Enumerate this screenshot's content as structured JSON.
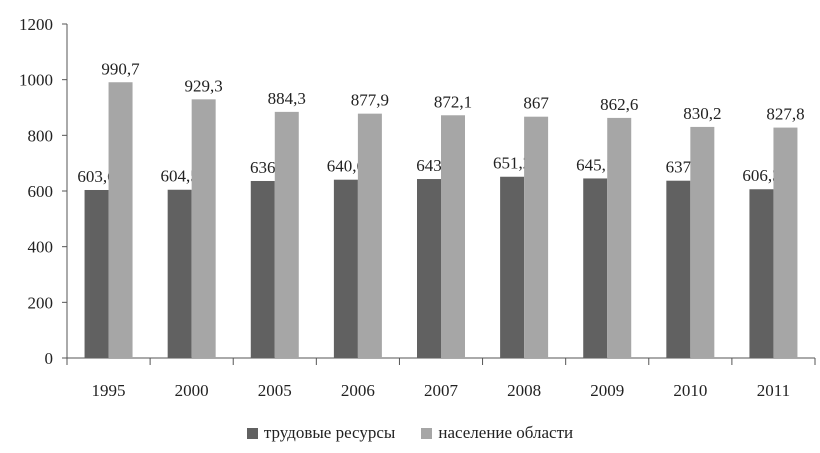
{
  "chart_data": {
    "type": "bar",
    "categories": [
      "1995",
      "2000",
      "2005",
      "2006",
      "2007",
      "2008",
      "2009",
      "2010",
      "2011"
    ],
    "series": [
      {
        "name": "трудовые ресурсы",
        "color": "#616161",
        "values": [
          603.6,
          604.5,
          636,
          640.6,
          643,
          651.2,
          645.1,
          637,
          606.3
        ],
        "labels": [
          "603,6",
          "604,5",
          "636",
          "640,6",
          "643",
          "651,2",
          "645,1",
          "637",
          "606,3"
        ]
      },
      {
        "name": "население области",
        "color": "#a6a6a6",
        "values": [
          990.7,
          929.3,
          884.3,
          877.9,
          872.1,
          867,
          862.6,
          830.2,
          827.8
        ],
        "labels": [
          "990,7",
          "929,3",
          "884,3",
          "877,9",
          "872,1",
          "867",
          "862,6",
          "830,2",
          "827,8"
        ]
      }
    ],
    "ylim": [
      0,
      1200
    ],
    "yticks": [
      "0",
      "200",
      "400",
      "600",
      "800",
      "1000",
      "1200"
    ],
    "grid": false,
    "legend_position": "bottom"
  }
}
